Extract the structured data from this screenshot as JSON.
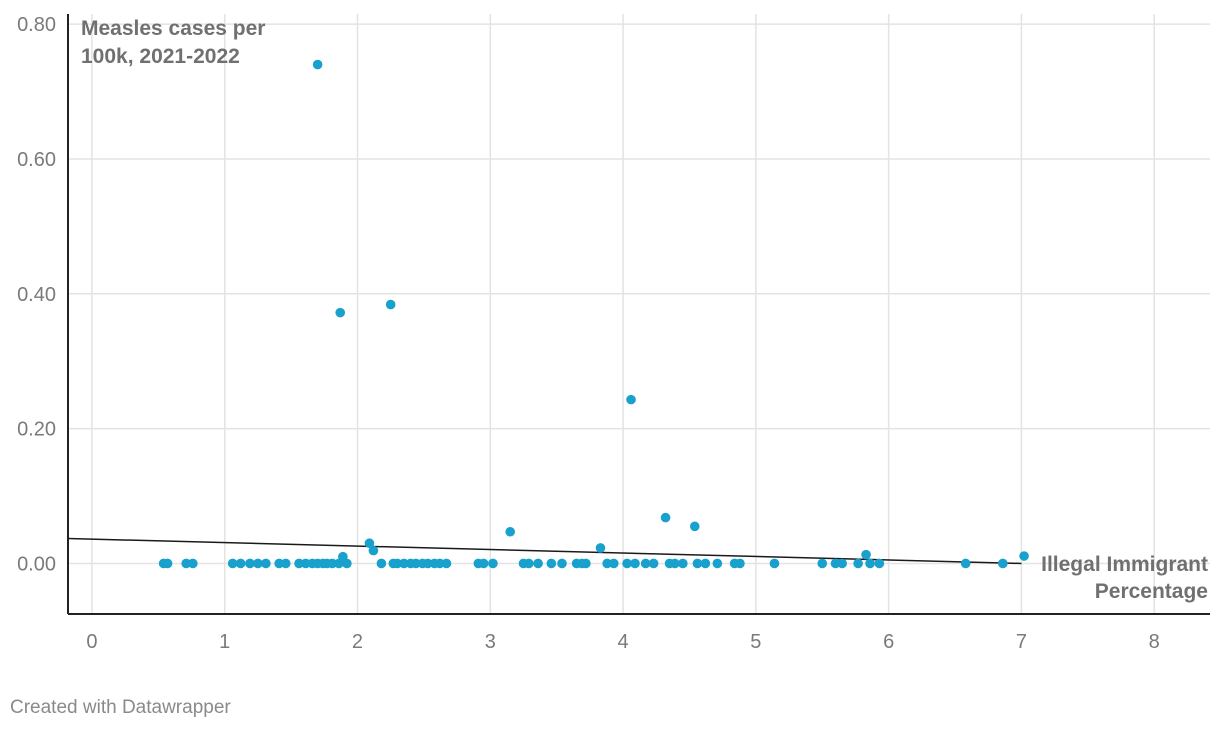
{
  "chart_data": {
    "type": "scatter",
    "ylabel_lines": [
      "Measles cases per",
      "100k, 2021-2022"
    ],
    "xlabel_lines": [
      "Illegal Immigrant",
      "Percentage"
    ],
    "xlim": [
      -0.18,
      8.42
    ],
    "ylim": [
      -0.075,
      0.815
    ],
    "x_ticks": [
      0,
      1,
      2,
      3,
      4,
      5,
      6,
      7,
      8
    ],
    "x_tick_labels": [
      "0",
      "1",
      "2",
      "3",
      "4",
      "5",
      "6",
      "7",
      "8"
    ],
    "y_ticks": [
      0,
      0.2,
      0.4,
      0.6,
      0.8
    ],
    "y_tick_labels": [
      "0.00",
      "0.20",
      "0.40",
      "0.60",
      "0.80"
    ],
    "grid": true,
    "trendline": {
      "x": [
        -0.18,
        7.0
      ],
      "y": [
        0.037,
        0.0
      ]
    },
    "point_color": "#18a1cd",
    "trendline_color": "#1a1a1a",
    "points": [
      {
        "x": 0.54,
        "y": 0
      },
      {
        "x": 0.57,
        "y": 0
      },
      {
        "x": 0.71,
        "y": 0
      },
      {
        "x": 0.76,
        "y": 0
      },
      {
        "x": 1.06,
        "y": 0
      },
      {
        "x": 1.12,
        "y": 0
      },
      {
        "x": 1.19,
        "y": 0
      },
      {
        "x": 1.25,
        "y": 0
      },
      {
        "x": 1.31,
        "y": 0
      },
      {
        "x": 1.41,
        "y": 0
      },
      {
        "x": 1.46,
        "y": 0
      },
      {
        "x": 1.56,
        "y": 0
      },
      {
        "x": 1.61,
        "y": 0
      },
      {
        "x": 1.66,
        "y": 0
      },
      {
        "x": 1.7,
        "y": 0
      },
      {
        "x": 1.74,
        "y": 0
      },
      {
        "x": 1.77,
        "y": 0
      },
      {
        "x": 1.81,
        "y": 0
      },
      {
        "x": 1.86,
        "y": 0
      },
      {
        "x": 1.92,
        "y": 0
      },
      {
        "x": 1.89,
        "y": 0.01
      },
      {
        "x": 1.7,
        "y": 0.74
      },
      {
        "x": 1.87,
        "y": 0.372
      },
      {
        "x": 2.09,
        "y": 0.03
      },
      {
        "x": 2.12,
        "y": 0.019
      },
      {
        "x": 2.25,
        "y": 0.384
      },
      {
        "x": 2.18,
        "y": 0
      },
      {
        "x": 2.27,
        "y": 0
      },
      {
        "x": 2.3,
        "y": 0
      },
      {
        "x": 2.35,
        "y": 0
      },
      {
        "x": 2.4,
        "y": 0
      },
      {
        "x": 2.44,
        "y": 0
      },
      {
        "x": 2.49,
        "y": 0
      },
      {
        "x": 2.53,
        "y": 0
      },
      {
        "x": 2.58,
        "y": 0
      },
      {
        "x": 2.62,
        "y": 0
      },
      {
        "x": 2.67,
        "y": 0
      },
      {
        "x": 2.91,
        "y": 0
      },
      {
        "x": 2.95,
        "y": 0
      },
      {
        "x": 3.02,
        "y": 0
      },
      {
        "x": 3.15,
        "y": 0.047
      },
      {
        "x": 3.25,
        "y": 0
      },
      {
        "x": 3.29,
        "y": 0
      },
      {
        "x": 3.36,
        "y": 0
      },
      {
        "x": 3.46,
        "y": 0
      },
      {
        "x": 3.54,
        "y": 0
      },
      {
        "x": 3.65,
        "y": 0
      },
      {
        "x": 3.69,
        "y": 0
      },
      {
        "x": 3.72,
        "y": 0
      },
      {
        "x": 3.83,
        "y": 0.023
      },
      {
        "x": 3.88,
        "y": 0
      },
      {
        "x": 3.93,
        "y": 0
      },
      {
        "x": 4.03,
        "y": 0
      },
      {
        "x": 4.06,
        "y": 0.243
      },
      {
        "x": 4.09,
        "y": 0
      },
      {
        "x": 4.17,
        "y": 0
      },
      {
        "x": 4.23,
        "y": 0
      },
      {
        "x": 4.32,
        "y": 0.068
      },
      {
        "x": 4.35,
        "y": 0
      },
      {
        "x": 4.39,
        "y": 0
      },
      {
        "x": 4.45,
        "y": 0
      },
      {
        "x": 4.54,
        "y": 0.055
      },
      {
        "x": 4.56,
        "y": 0
      },
      {
        "x": 4.62,
        "y": 0
      },
      {
        "x": 4.71,
        "y": 0
      },
      {
        "x": 4.84,
        "y": 0
      },
      {
        "x": 4.88,
        "y": 0
      },
      {
        "x": 5.14,
        "y": 0
      },
      {
        "x": 5.5,
        "y": 0
      },
      {
        "x": 5.6,
        "y": 0
      },
      {
        "x": 5.65,
        "y": 0
      },
      {
        "x": 5.77,
        "y": 0
      },
      {
        "x": 5.83,
        "y": 0.013
      },
      {
        "x": 5.86,
        "y": 0
      },
      {
        "x": 5.93,
        "y": 0
      },
      {
        "x": 6.58,
        "y": 0
      },
      {
        "x": 6.86,
        "y": 0
      },
      {
        "x": 7.02,
        "y": 0.011
      }
    ]
  },
  "footer": {
    "credit": "Created with Datawrapper"
  }
}
